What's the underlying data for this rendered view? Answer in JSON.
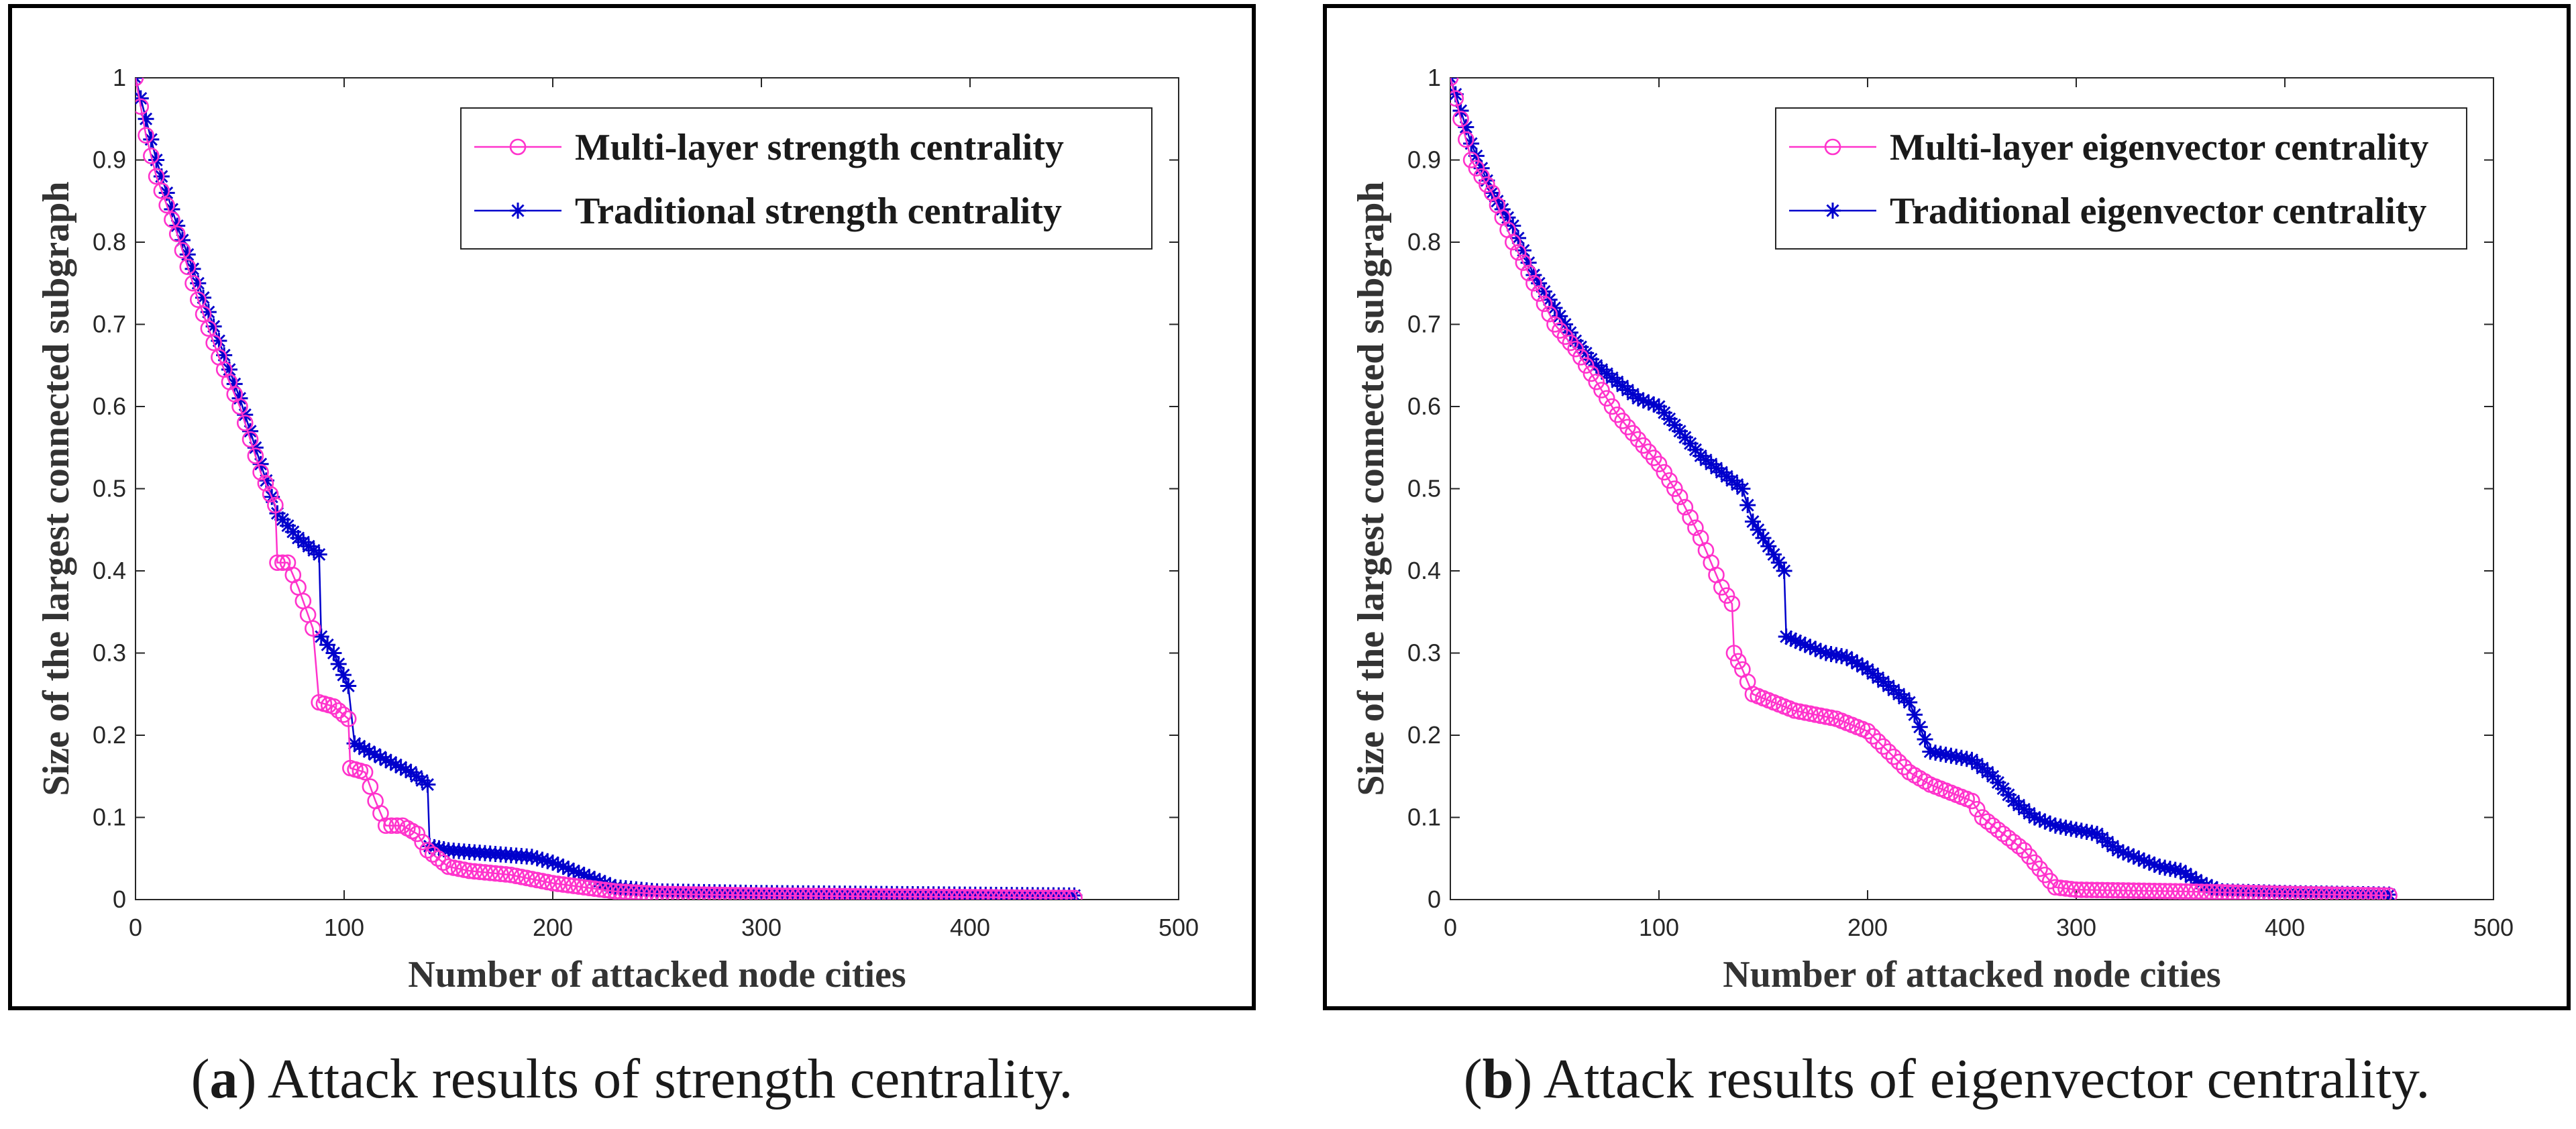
{
  "chart_data": [
    {
      "type": "line",
      "panel_id": "a",
      "xlabel": "Number of attacked node cities",
      "ylabel": "Size of the largest connected subgraph",
      "xlim": [
        0,
        500
      ],
      "ylim": [
        0,
        1
      ],
      "xticks": [
        0,
        100,
        200,
        300,
        400,
        500
      ],
      "xtick_labels": [
        "0",
        "100",
        "200",
        "300",
        "400",
        "500"
      ],
      "yticks": [
        0,
        0.1,
        0.2,
        0.3,
        0.4,
        0.5,
        0.6,
        0.7,
        0.8,
        0.9,
        1
      ],
      "ytick_labels": [
        "0",
        "0.1",
        "0.2",
        "0.3",
        "0.4",
        "0.5",
        "0.6",
        "0.7",
        "0.8",
        "0.9",
        "1"
      ],
      "grid": false,
      "legend_position": "top-right",
      "series": [
        {
          "name": "Multi-layer strength centrality",
          "color": "#ff33cc",
          "marker": "circle",
          "points": [
            [
              0,
              1
            ],
            [
              5,
              0.93
            ],
            [
              10,
              0.88
            ],
            [
              20,
              0.81
            ],
            [
              30,
              0.73
            ],
            [
              40,
              0.66
            ],
            [
              50,
              0.6
            ],
            [
              60,
              0.52
            ],
            [
              67,
              0.48
            ],
            [
              68,
              0.41
            ],
            [
              73,
              0.41
            ],
            [
              78,
              0.38
            ],
            [
              85,
              0.33
            ],
            [
              88,
              0.24
            ],
            [
              95,
              0.235
            ],
            [
              102,
              0.22
            ],
            [
              103,
              0.16
            ],
            [
              110,
              0.155
            ],
            [
              115,
              0.12
            ],
            [
              120,
              0.09
            ],
            [
              128,
              0.09
            ],
            [
              135,
              0.08
            ],
            [
              140,
              0.06
            ],
            [
              150,
              0.04
            ],
            [
              160,
              0.035
            ],
            [
              180,
              0.03
            ],
            [
              200,
              0.02
            ],
            [
              215,
              0.015
            ],
            [
              230,
              0.01
            ],
            [
              250,
              0.007
            ],
            [
              300,
              0.005
            ],
            [
              350,
              0.004
            ],
            [
              400,
              0.003
            ],
            [
              450,
              0.002
            ]
          ]
        },
        {
          "name": "Traditional strength centrality",
          "color": "#0000cc",
          "marker": "star",
          "points": [
            [
              0,
              1
            ],
            [
              5,
              0.95
            ],
            [
              10,
              0.9
            ],
            [
              20,
              0.82
            ],
            [
              30,
              0.75
            ],
            [
              40,
              0.68
            ],
            [
              50,
              0.61
            ],
            [
              60,
              0.53
            ],
            [
              68,
              0.47
            ],
            [
              78,
              0.44
            ],
            [
              88,
              0.42
            ],
            [
              89,
              0.32
            ],
            [
              95,
              0.3
            ],
            [
              102,
              0.26
            ],
            [
              105,
              0.19
            ],
            [
              112,
              0.18
            ],
            [
              120,
              0.17
            ],
            [
              132,
              0.155
            ],
            [
              140,
              0.14
            ],
            [
              141,
              0.065
            ],
            [
              150,
              0.06
            ],
            [
              160,
              0.058
            ],
            [
              175,
              0.055
            ],
            [
              190,
              0.052
            ],
            [
              200,
              0.045
            ],
            [
              215,
              0.03
            ],
            [
              230,
              0.015
            ],
            [
              250,
              0.01
            ],
            [
              300,
              0.008
            ],
            [
              350,
              0.007
            ],
            [
              400,
              0.006
            ],
            [
              450,
              0.005
            ]
          ]
        }
      ],
      "caption_label": "a",
      "caption_text": "Attack results of strength centrality."
    },
    {
      "type": "line",
      "panel_id": "b",
      "xlabel": "Number of attacked node cities",
      "ylabel": "Size of the largest connected subgraph",
      "xlim": [
        0,
        500
      ],
      "ylim": [
        0,
        1
      ],
      "xticks": [
        0,
        100,
        200,
        300,
        400,
        500
      ],
      "xtick_labels": [
        "0",
        "100",
        "200",
        "300",
        "400",
        "500"
      ],
      "yticks": [
        0,
        0.1,
        0.2,
        0.3,
        0.4,
        0.5,
        0.6,
        0.7,
        0.8,
        0.9,
        1
      ],
      "ytick_labels": [
        "0",
        "0.1",
        "0.2",
        "0.3",
        "0.4",
        "0.5",
        "0.6",
        "0.7",
        "0.8",
        "0.9",
        "1"
      ],
      "grid": false,
      "legend_position": "top-right",
      "series": [
        {
          "name": "Multi-layer eigenvector centrality",
          "color": "#ff33cc",
          "marker": "circle",
          "points": [
            [
              0,
              1
            ],
            [
              10,
              0.9
            ],
            [
              20,
              0.86
            ],
            [
              30,
              0.8
            ],
            [
              40,
              0.75
            ],
            [
              50,
              0.7
            ],
            [
              60,
              0.67
            ],
            [
              70,
              0.63
            ],
            [
              80,
              0.59
            ],
            [
              90,
              0.56
            ],
            [
              100,
              0.53
            ],
            [
              110,
              0.49
            ],
            [
              120,
              0.44
            ],
            [
              130,
              0.38
            ],
            [
              135,
              0.36
            ],
            [
              136,
              0.3
            ],
            [
              140,
              0.28
            ],
            [
              145,
              0.25
            ],
            [
              155,
              0.24
            ],
            [
              165,
              0.23
            ],
            [
              175,
              0.225
            ],
            [
              185,
              0.22
            ],
            [
              200,
              0.205
            ],
            [
              210,
              0.18
            ],
            [
              220,
              0.155
            ],
            [
              230,
              0.14
            ],
            [
              240,
              0.13
            ],
            [
              250,
              0.12
            ],
            [
              255,
              0.1
            ],
            [
              265,
              0.08
            ],
            [
              275,
              0.06
            ],
            [
              285,
              0.03
            ],
            [
              290,
              0.015
            ],
            [
              300,
              0.012
            ],
            [
              350,
              0.01
            ],
            [
              400,
              0.007
            ],
            [
              450,
              0.005
            ]
          ]
        },
        {
          "name": "Traditional eigenvector centrality",
          "color": "#0000cc",
          "marker": "star",
          "points": [
            [
              0,
              1
            ],
            [
              10,
              0.92
            ],
            [
              20,
              0.86
            ],
            [
              30,
              0.82
            ],
            [
              40,
              0.76
            ],
            [
              50,
              0.72
            ],
            [
              60,
              0.68
            ],
            [
              70,
              0.65
            ],
            [
              80,
              0.63
            ],
            [
              90,
              0.61
            ],
            [
              100,
              0.6
            ],
            [
              110,
              0.57
            ],
            [
              120,
              0.54
            ],
            [
              130,
              0.52
            ],
            [
              140,
              0.5
            ],
            [
              145,
              0.46
            ],
            [
              150,
              0.44
            ],
            [
              160,
              0.4
            ],
            [
              161,
              0.32
            ],
            [
              170,
              0.31
            ],
            [
              180,
              0.3
            ],
            [
              190,
              0.295
            ],
            [
              200,
              0.28
            ],
            [
              210,
              0.26
            ],
            [
              220,
              0.24
            ],
            [
              230,
              0.18
            ],
            [
              240,
              0.175
            ],
            [
              250,
              0.17
            ],
            [
              260,
              0.15
            ],
            [
              270,
              0.12
            ],
            [
              280,
              0.1
            ],
            [
              290,
              0.09
            ],
            [
              300,
              0.085
            ],
            [
              310,
              0.08
            ],
            [
              320,
              0.06
            ],
            [
              330,
              0.05
            ],
            [
              340,
              0.04
            ],
            [
              350,
              0.035
            ],
            [
              360,
              0.02
            ],
            [
              370,
              0.01
            ],
            [
              400,
              0.008
            ],
            [
              450,
              0.006
            ]
          ]
        }
      ],
      "caption_label": "b",
      "caption_text": "Attack results of eigenvector centrality."
    }
  ]
}
